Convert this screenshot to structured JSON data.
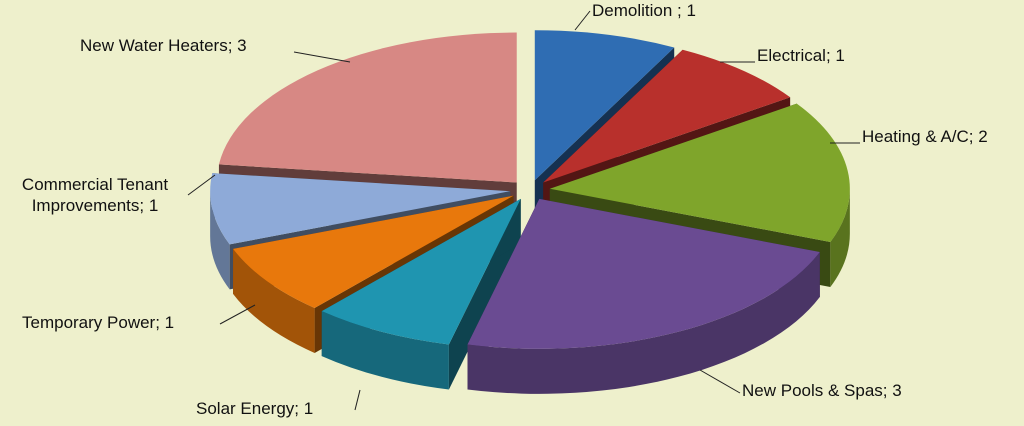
{
  "chart_data": {
    "type": "pie",
    "categories": [
      "Demolition",
      "Electrical",
      "Heating & A/C",
      "New Pools & Spas",
      "Solar Energy",
      "Temporary Power",
      "Commercial Tenant Improvements",
      "New Water Heaters"
    ],
    "values": [
      1,
      1,
      2,
      3,
      1,
      1,
      1,
      3
    ],
    "value_labels": [
      "Demolition ; 1",
      "Electrical; 1",
      "Heating & A/C; 2",
      "New Pools & Spas; 3",
      "Solar Energy; 1",
      "Temporary Power; 1",
      "Commercial Tenant Improvements; 1",
      "New Water Heaters; 3"
    ],
    "colors": [
      "#2f6db3",
      "#b8302c",
      "#7fa52b",
      "#6a4b92",
      "#1f95b0",
      "#e8780c",
      "#8eaad8",
      "#d78884"
    ]
  }
}
